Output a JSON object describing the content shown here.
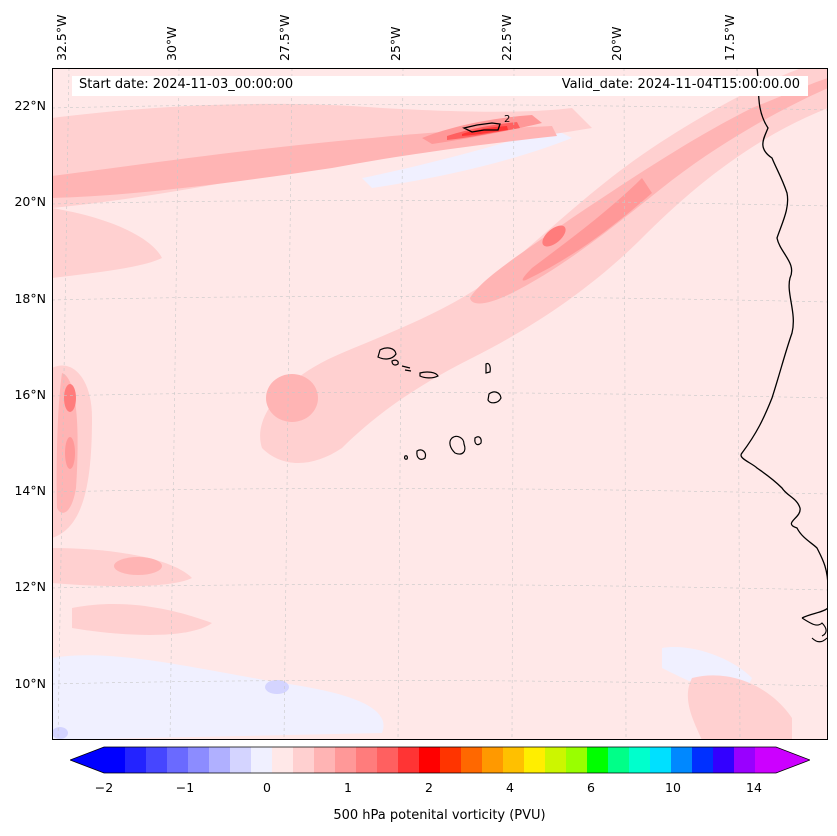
{
  "map": {
    "start_date": "Start date: 2024-11-03_00:00:00",
    "valid_date": "Valid_date: 2024-11-04T15:00:00.00",
    "lon_labels": [
      "32.5°W",
      "30°W",
      "27.5°W",
      "25°W",
      "22.5°W",
      "20°W",
      "17.5°W"
    ],
    "lat_labels": [
      "22°N",
      "20°N",
      "18°N",
      "16°N",
      "14°N",
      "12°N",
      "10°N"
    ],
    "islands_label": "2"
  },
  "colorbar": {
    "label": "500 hPa potenital vorticity (PVU)",
    "ticks": [
      "−2",
      "−1",
      "0",
      "1",
      "2",
      "4",
      "6",
      "10",
      "14"
    ],
    "colors": [
      "#0000ff",
      "#2323ff",
      "#4646ff",
      "#6a6aff",
      "#8c8cff",
      "#b0b0ff",
      "#d4d4ff",
      "#f0f0ff",
      "#ffe8e8",
      "#ffd0d0",
      "#ffb4b4",
      "#ff9898",
      "#ff7c7c",
      "#ff6060",
      "#ff3434",
      "#ff0000",
      "#ff3400",
      "#ff6800",
      "#ff9900",
      "#ffc000",
      "#ffee00",
      "#ccf600",
      "#99ff00",
      "#00ff00",
      "#00ff88",
      "#00ffcc",
      "#00e0ff",
      "#0088ff",
      "#0030ff",
      "#3300ff",
      "#9900ff",
      "#cc00ff"
    ],
    "under_color": "#0000ff",
    "over_color": "#cc00ff"
  }
}
